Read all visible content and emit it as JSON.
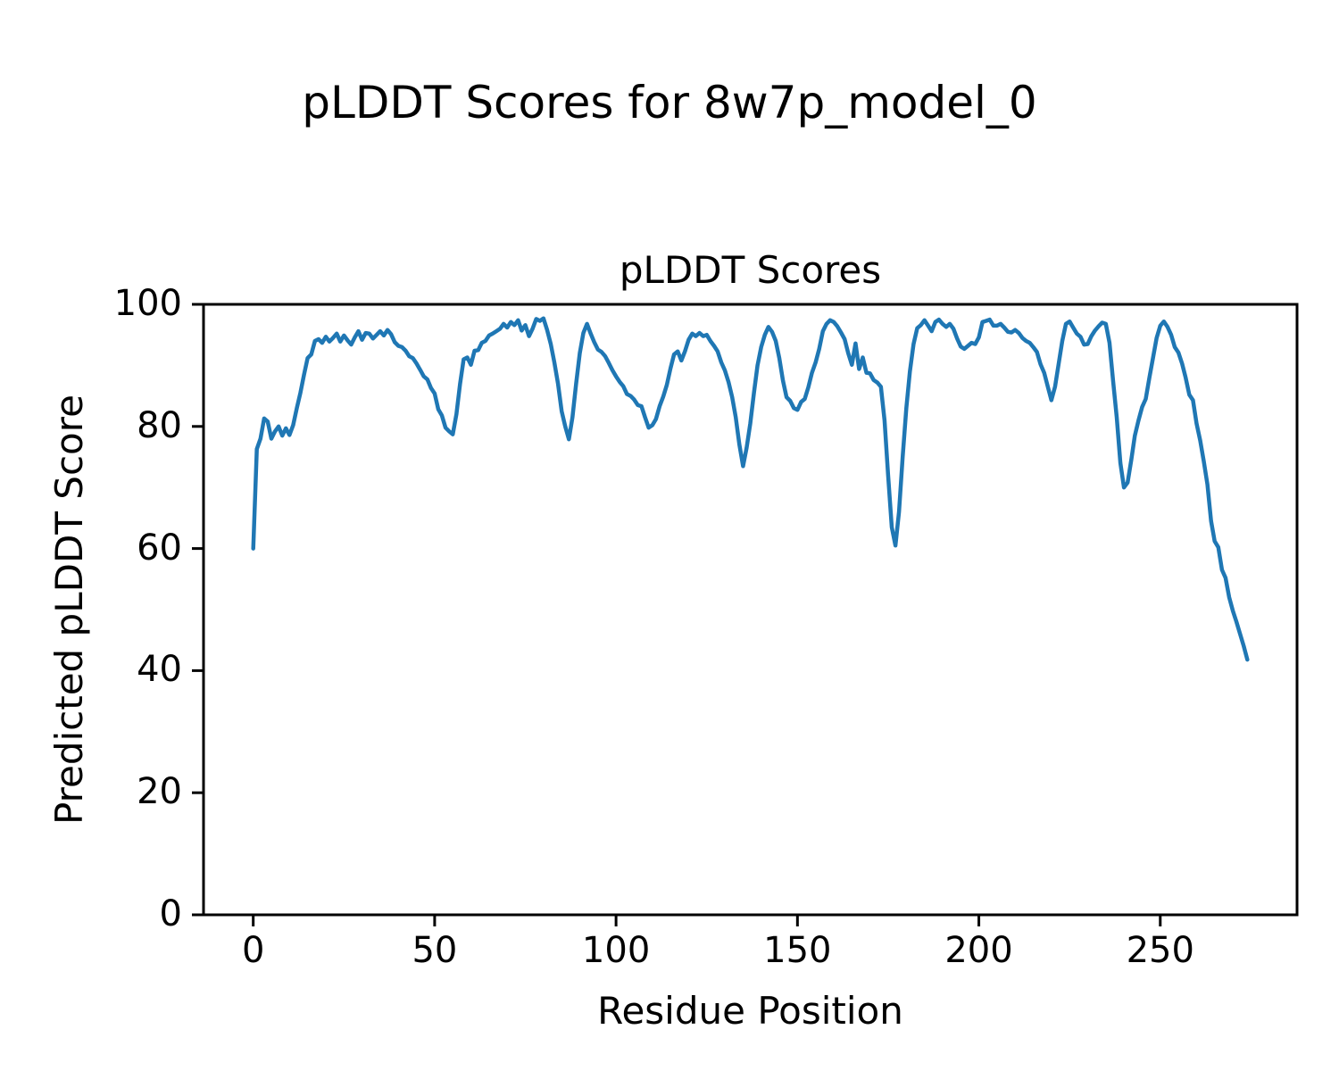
{
  "figure": {
    "title": "pLDDT Scores for 8w7p_model_0",
    "background_color": "#ffffff",
    "text_color": "#000000"
  },
  "chart_data": {
    "type": "line",
    "title": "pLDDT Scores",
    "xlabel": "Residue Position",
    "ylabel": "Predicted pLDDT Score",
    "xlim": [
      -13.7,
      287.7
    ],
    "ylim": [
      0,
      100
    ],
    "xticks": [
      0,
      50,
      100,
      150,
      200,
      250
    ],
    "yticks": [
      0,
      20,
      40,
      60,
      80,
      100
    ],
    "grid": false,
    "legend": null,
    "line_color": "#1f77b4",
    "axis_color": "#000000",
    "x_start": 0,
    "x_step": 1,
    "series": [
      {
        "name": "pLDDT Scores",
        "values": [
          60.0,
          76.3,
          78.0,
          81.3,
          80.8,
          78.0,
          79.2,
          80.0,
          78.5,
          79.7,
          78.6,
          80.2,
          83.0,
          85.5,
          88.5,
          91.2,
          91.8,
          94.0,
          94.3,
          93.7,
          94.7,
          93.9,
          94.5,
          95.2,
          93.9,
          94.9,
          94.1,
          93.4,
          94.6,
          95.6,
          94.2,
          95.3,
          95.2,
          94.4,
          95.0,
          95.6,
          94.9,
          95.8,
          95.1,
          93.8,
          93.2,
          93.0,
          92.4,
          91.5,
          91.2,
          90.3,
          89.3,
          88.2,
          87.7,
          86.3,
          85.4,
          82.8,
          81.8,
          79.8,
          79.2,
          78.7,
          82.0,
          87.0,
          91.0,
          91.3,
          90.1,
          92.4,
          92.5,
          93.7,
          94.0,
          94.9,
          95.2,
          95.6,
          96.0,
          96.8,
          96.2,
          97.1,
          96.6,
          97.4,
          95.7,
          96.6,
          94.8,
          96.0,
          97.6,
          97.3,
          97.7,
          95.8,
          93.5,
          90.5,
          87.0,
          82.5,
          80.0,
          77.9,
          81.5,
          87.0,
          92.0,
          95.3,
          96.8,
          95.2,
          93.8,
          92.6,
          92.2,
          91.5,
          90.4,
          89.2,
          88.2,
          87.3,
          86.6,
          85.3,
          85.0,
          84.4,
          83.5,
          83.3,
          81.5,
          79.8,
          80.2,
          81.2,
          83.3,
          84.9,
          86.8,
          89.5,
          91.8,
          92.3,
          90.8,
          92.3,
          94.2,
          95.2,
          94.8,
          95.3,
          94.8,
          95.0,
          94.0,
          93.2,
          92.3,
          90.5,
          89.2,
          87.3,
          84.8,
          81.5,
          77.0,
          73.5,
          76.5,
          80.5,
          85.5,
          90.0,
          93.0,
          95.0,
          96.3,
          95.5,
          94.0,
          91.2,
          87.5,
          84.8,
          84.2,
          83.0,
          82.7,
          84.0,
          84.5,
          86.4,
          88.8,
          90.5,
          92.7,
          95.6,
          96.8,
          97.4,
          97.1,
          96.4,
          95.4,
          94.3,
          92.0,
          90.1,
          93.6,
          89.4,
          91.3,
          88.8,
          88.7,
          87.6,
          87.2,
          86.5,
          81.0,
          72.0,
          63.5,
          60.5,
          66.0,
          75.0,
          83.0,
          89.0,
          93.5,
          96.1,
          96.6,
          97.4,
          96.5,
          95.6,
          97.1,
          97.5,
          96.8,
          96.3,
          96.8,
          96.0,
          94.4,
          93.1,
          92.7,
          93.2,
          93.7,
          93.5,
          94.6,
          97.1,
          97.3,
          97.5,
          96.5,
          96.5,
          96.8,
          96.2,
          95.5,
          95.4,
          95.8,
          95.3,
          94.5,
          94.0,
          93.7,
          93.0,
          92.2,
          90.2,
          88.8,
          86.5,
          84.3,
          86.5,
          90.3,
          94.0,
          96.8,
          97.2,
          96.2,
          95.2,
          94.7,
          93.4,
          93.5,
          94.8,
          95.7,
          96.4,
          97.0,
          96.8,
          93.7,
          87.5,
          81.5,
          74.0,
          70.0,
          70.8,
          74.5,
          78.5,
          81.0,
          83.2,
          84.5,
          88.0,
          91.2,
          94.5,
          96.5,
          97.2,
          96.3,
          95.0,
          93.0,
          92.1,
          90.3,
          88.0,
          85.2,
          84.3,
          80.5,
          77.7,
          74.3,
          70.5,
          64.5,
          61.2,
          60.2,
          56.5,
          55.2,
          52.0,
          49.8,
          48.0,
          46.0,
          44.0,
          41.8
        ]
      }
    ]
  }
}
